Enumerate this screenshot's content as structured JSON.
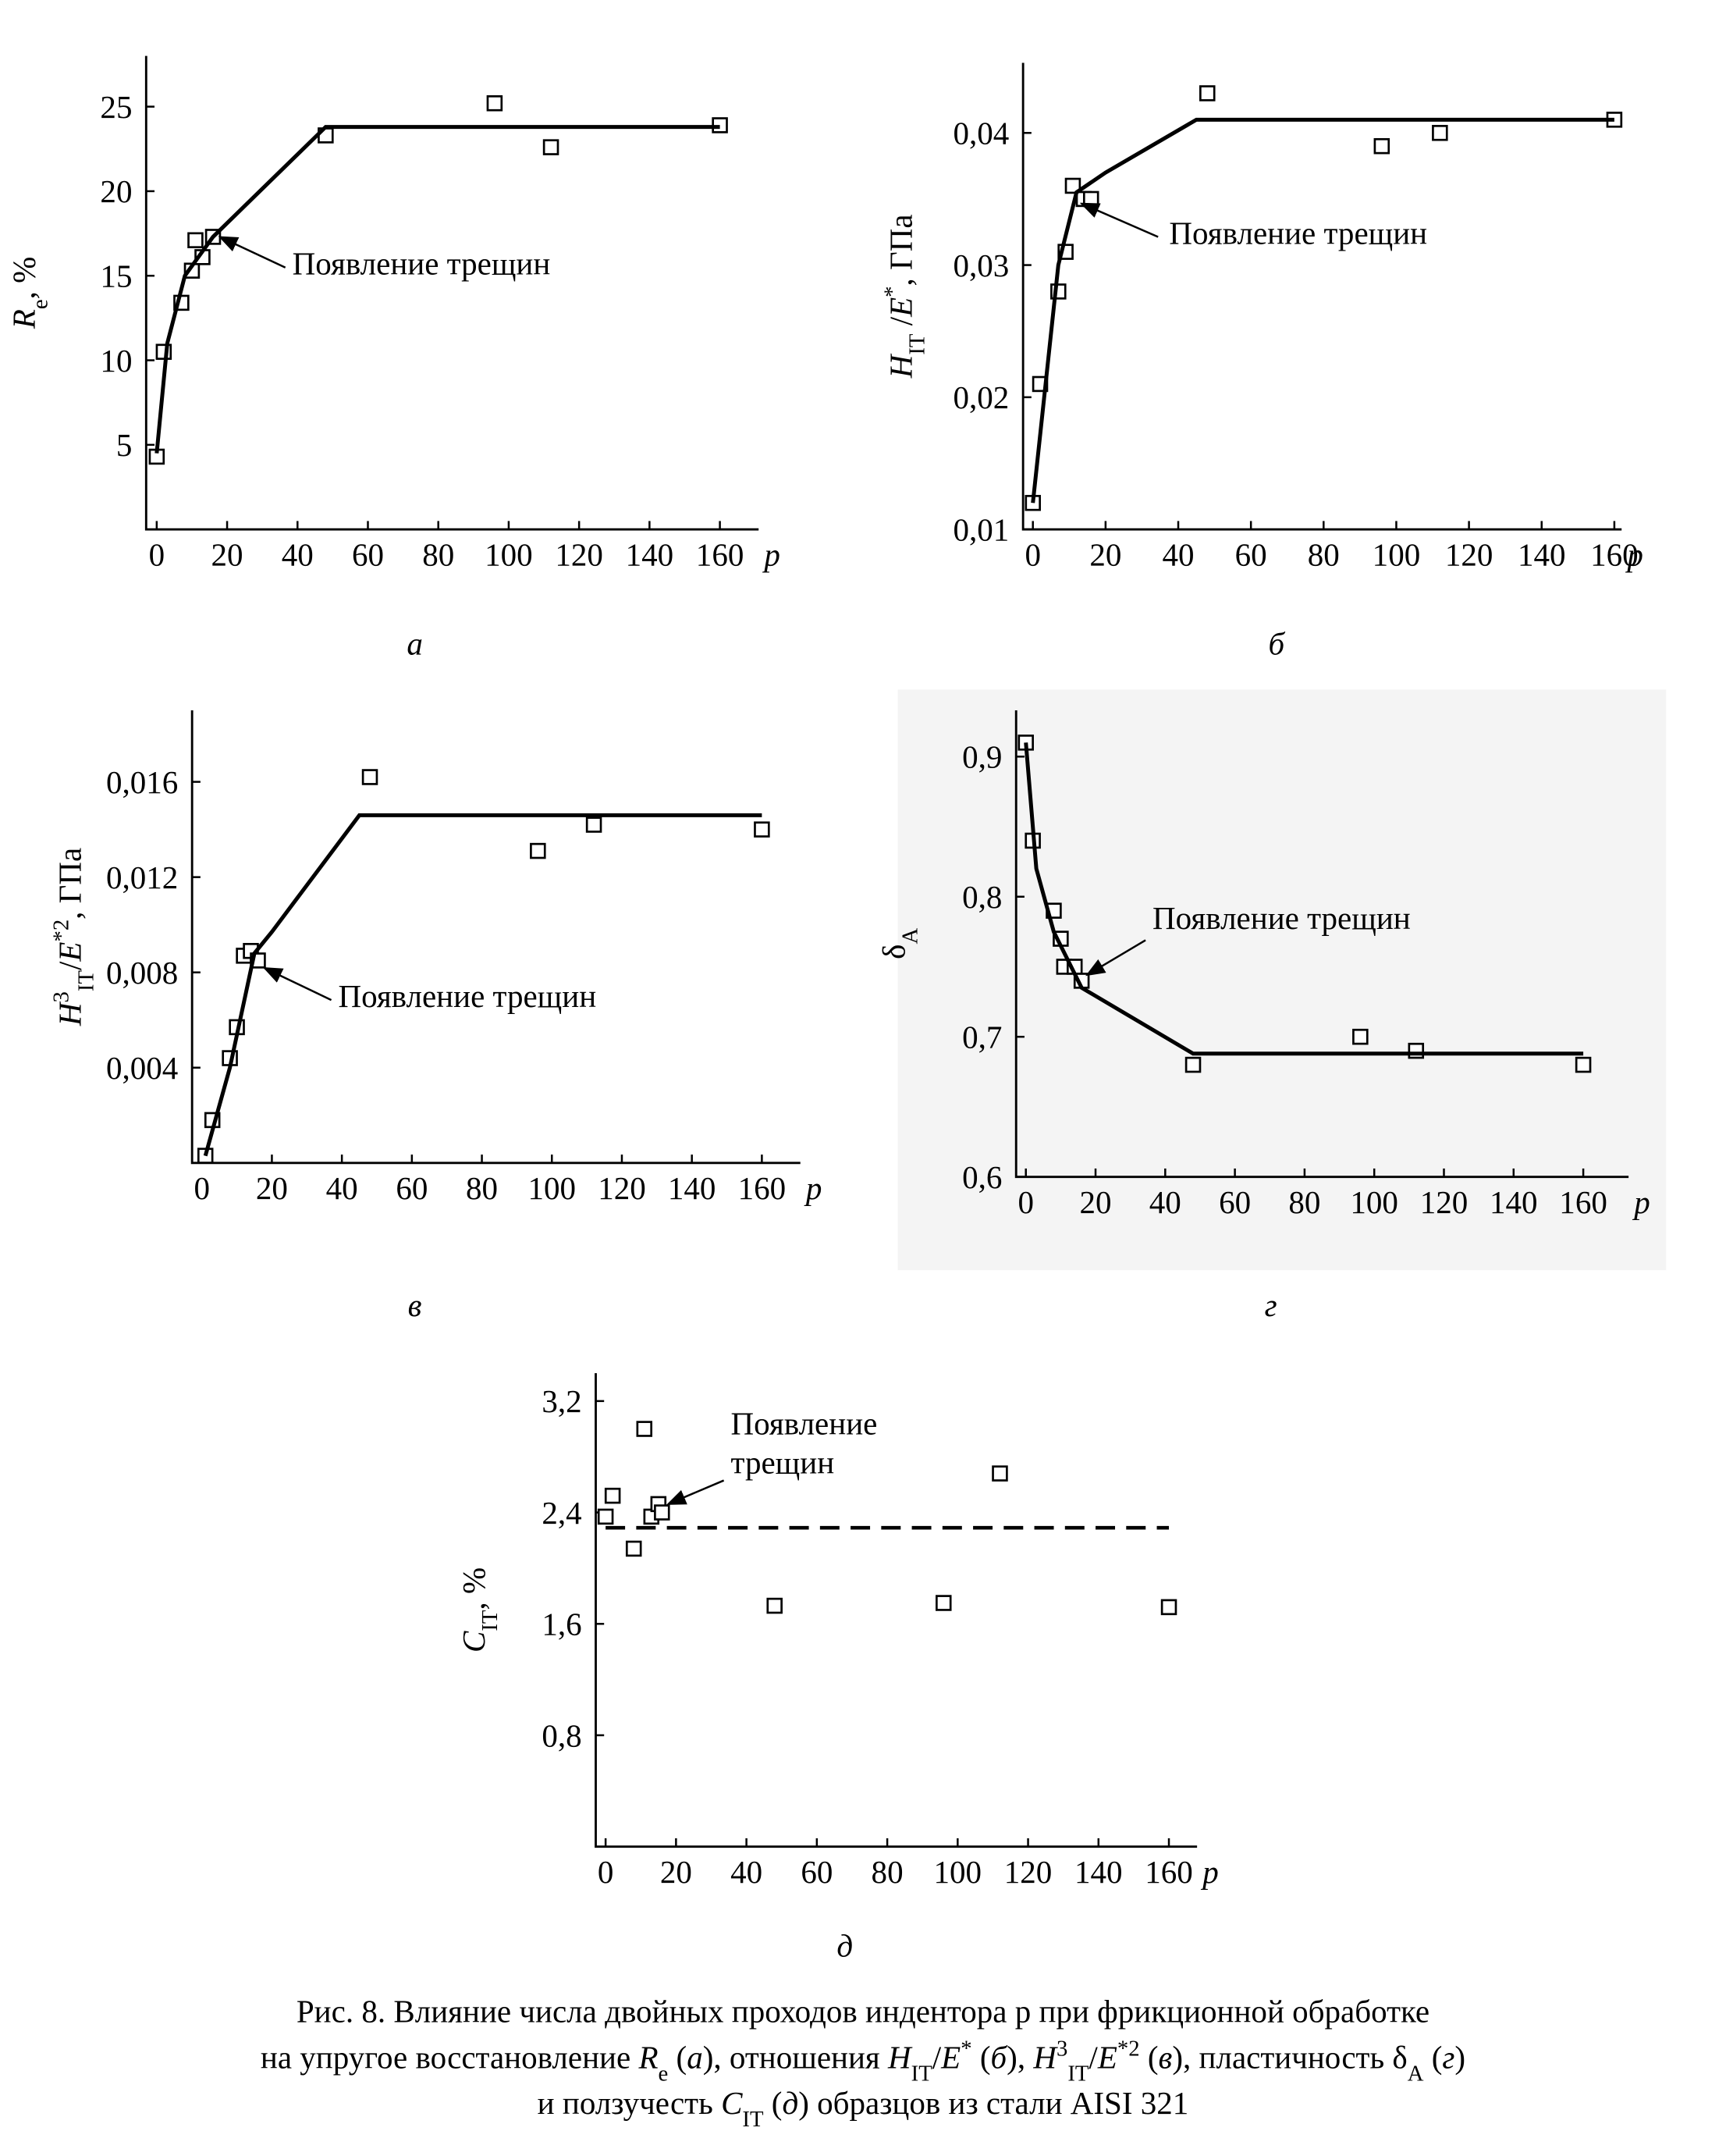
{
  "chart_data": [
    {
      "type": "scatter",
      "label": "а",
      "xlabel": "p",
      "ylabel": [
        {
          "text": "R",
          "italic": true
        },
        {
          "text": "e",
          "sub": true
        },
        {
          "text": ", %"
        }
      ],
      "xlim": [
        -3,
        171
      ],
      "ylim": [
        0,
        28
      ],
      "xticks": [
        0,
        20,
        40,
        60,
        80,
        100,
        120,
        140,
        160
      ],
      "yticks": [
        5,
        10,
        15,
        20,
        25
      ],
      "series": [
        {
          "kind": "scatter",
          "color": "#000000",
          "x": [
            0,
            2,
            7,
            10,
            11,
            13,
            16,
            48,
            96,
            112,
            160
          ],
          "y": [
            4.3,
            10.5,
            13.4,
            15.3,
            17.1,
            16.1,
            17.3,
            23.3,
            25.2,
            22.6,
            23.9
          ]
        },
        {
          "kind": "line",
          "color": "#000000",
          "dashed": false,
          "x": [
            0,
            3,
            8,
            16,
            48,
            160
          ],
          "y": [
            4.5,
            11,
            15,
            17.3,
            23.8,
            23.8
          ]
        }
      ],
      "annotation": [
        "Появление трещин"
      ]
    },
    {
      "type": "scatter",
      "label": "б",
      "xlabel": "p",
      "ylabel": [
        {
          "text": "H",
          "italic": true
        },
        {
          "text": "IT",
          "sub": true
        },
        {
          "text": " /"
        },
        {
          "text": "E",
          "italic": true
        },
        {
          "text": "*",
          "sup": true
        },
        {
          "text": ", ГПа"
        }
      ],
      "xlim": [
        -2.7,
        162
      ],
      "ylim": [
        0.01,
        0.0453
      ],
      "xticks": [
        0,
        20,
        40,
        60,
        80,
        100,
        120,
        140,
        160
      ],
      "yticks": [
        {
          "value": 0.01,
          "label": "0,01"
        },
        {
          "value": 0.02,
          "label": "0,02"
        },
        {
          "value": 0.03,
          "label": "0,03"
        },
        {
          "value": 0.04,
          "label": "0,04"
        }
      ],
      "series": [
        {
          "kind": "scatter",
          "color": "#000000",
          "x": [
            0,
            2,
            7,
            9,
            11,
            14,
            16,
            48,
            96,
            112,
            160
          ],
          "y": [
            0.012,
            0.021,
            0.028,
            0.031,
            0.036,
            0.035,
            0.035,
            0.043,
            0.039,
            0.04,
            0.041
          ]
        },
        {
          "kind": "line",
          "color": "#000000",
          "dashed": false,
          "x": [
            0,
            7,
            12,
            20,
            45,
            160
          ],
          "y": [
            0.012,
            0.03,
            0.0355,
            0.037,
            0.041,
            0.041
          ]
        }
      ],
      "annotation": [
        "Появление трещин"
      ]
    },
    {
      "type": "scatter",
      "label": "в",
      "xlabel": "p",
      "ylabel": [
        {
          "text": "H",
          "italic": true
        },
        {
          "text": "3",
          "sup": true
        },
        {
          "text": "IT",
          "sub": true
        },
        {
          "text": "/"
        },
        {
          "text": "E",
          "italic": true
        },
        {
          "text": "*2",
          "sup": true
        },
        {
          "text": ", ГПа"
        }
      ],
      "xlim": [
        -2.8,
        171
      ],
      "ylim": [
        0,
        0.019
      ],
      "xticks": [
        0,
        20,
        40,
        60,
        80,
        100,
        120,
        140,
        160
      ],
      "yticks": [
        {
          "value": 0.004,
          "label": "0,004"
        },
        {
          "value": 0.008,
          "label": "0,008"
        },
        {
          "value": 0.012,
          "label": "0,012"
        },
        {
          "value": 0.016,
          "label": "0,016"
        }
      ],
      "series": [
        {
          "kind": "scatter",
          "color": "#000000",
          "x": [
            1,
            3,
            8,
            10,
            12,
            14,
            16,
            48,
            96,
            112,
            160
          ],
          "y": [
            0.0003,
            0.0018,
            0.0044,
            0.0057,
            0.0087,
            0.0089,
            0.0085,
            0.0162,
            0.0131,
            0.0142,
            0.014
          ]
        },
        {
          "kind": "line",
          "color": "#000000",
          "dashed": false,
          "x": [
            1,
            8,
            15,
            20,
            45,
            160
          ],
          "y": [
            0.0003,
            0.004,
            0.0088,
            0.0097,
            0.0146,
            0.0146
          ]
        }
      ],
      "annotation": [
        "Появление трещин"
      ]
    },
    {
      "type": "scatter",
      "label": "г",
      "xlabel": "p",
      "background": "#f4f4f4",
      "ylabel": [
        {
          "text": "δ"
        },
        {
          "text": "A",
          "sub": true
        }
      ],
      "xlim": [
        -2.8,
        173
      ],
      "ylim": [
        0.6,
        0.933
      ],
      "xticks": [
        0,
        20,
        40,
        60,
        80,
        100,
        120,
        140,
        160
      ],
      "yticks": [
        {
          "value": 0.6,
          "label": "0,6"
        },
        {
          "value": 0.7,
          "label": "0,7"
        },
        {
          "value": 0.8,
          "label": "0,8"
        },
        {
          "value": 0.9,
          "label": "0,9"
        }
      ],
      "series": [
        {
          "kind": "scatter",
          "color": "#000000",
          "x": [
            0,
            2,
            8,
            10,
            11,
            14,
            16,
            48,
            96,
            112,
            160
          ],
          "y": [
            0.91,
            0.84,
            0.79,
            0.77,
            0.75,
            0.75,
            0.74,
            0.68,
            0.7,
            0.69,
            0.68
          ]
        },
        {
          "kind": "line",
          "color": "#000000",
          "dashed": false,
          "x": [
            0,
            3,
            8,
            16,
            48,
            160
          ],
          "y": [
            0.91,
            0.82,
            0.775,
            0.735,
            0.688,
            0.688
          ]
        }
      ],
      "annotation": [
        "Появление трещин"
      ]
    },
    {
      "type": "scatter",
      "label": "д",
      "xlabel": "p",
      "ylabel": [
        {
          "text": "C",
          "italic": true
        },
        {
          "text": "IT",
          "sub": true
        },
        {
          "text": ", %"
        }
      ],
      "xlim": [
        -2.8,
        168
      ],
      "ylim": [
        0,
        3.4
      ],
      "xticks": [
        0,
        20,
        40,
        60,
        80,
        100,
        120,
        140,
        160
      ],
      "yticks": [
        {
          "value": 0.8,
          "label": "0,8"
        },
        {
          "value": 1.6,
          "label": "1,6"
        },
        {
          "value": 2.4,
          "label": "2,4"
        },
        {
          "value": 3.2,
          "label": "3,2"
        }
      ],
      "series": [
        {
          "kind": "scatter",
          "color": "#000000",
          "x": [
            0,
            2,
            8,
            11,
            13,
            15,
            16,
            48,
            96,
            112,
            160
          ],
          "y": [
            2.37,
            2.52,
            2.14,
            3.0,
            2.37,
            2.46,
            2.4,
            1.73,
            1.75,
            2.68,
            1.72
          ]
        },
        {
          "kind": "line",
          "color": "#000000",
          "dashed": true,
          "x": [
            0,
            160
          ],
          "y": [
            2.29,
            2.29
          ]
        }
      ],
      "annotation": [
        "Появление",
        "трещин"
      ]
    }
  ],
  "caption": [
    [
      {
        "text": "Рис. 8. Влияние числа двойных проходов индентора р при фрикционной обработке"
      }
    ],
    [
      {
        "text": "на упругое восстановление "
      },
      {
        "text": "R",
        "italic": true
      },
      {
        "text": "e",
        "sub": true
      },
      {
        "text": " ("
      },
      {
        "text": "а",
        "italic": true
      },
      {
        "text": "), отношения "
      },
      {
        "text": "H",
        "italic": true
      },
      {
        "text": "IT",
        "sub": true
      },
      {
        "text": "/"
      },
      {
        "text": "E",
        "italic": true
      },
      {
        "text": "*",
        "sup": true
      },
      {
        "text": " ("
      },
      {
        "text": "б",
        "italic": true
      },
      {
        "text": "), "
      },
      {
        "text": "H",
        "italic": true
      },
      {
        "text": "3",
        "sup": true
      },
      {
        "text": "IT",
        "sub": true
      },
      {
        "text": "/"
      },
      {
        "text": "E",
        "italic": true
      },
      {
        "text": "*2",
        "sup": true
      },
      {
        "text": " ("
      },
      {
        "text": "в",
        "italic": true
      },
      {
        "text": "), пластичность δ"
      },
      {
        "text": "A",
        "sub": true
      },
      {
        "text": " ("
      },
      {
        "text": "г",
        "italic": true
      },
      {
        "text": ")"
      }
    ],
    [
      {
        "text": "и ползучесть "
      },
      {
        "text": "C",
        "italic": true
      },
      {
        "text": "IT",
        "sub": true
      },
      {
        "text": " ("
      },
      {
        "text": "д",
        "italic": true
      },
      {
        "text": ") образцов из стали AISI 321"
      }
    ]
  ]
}
